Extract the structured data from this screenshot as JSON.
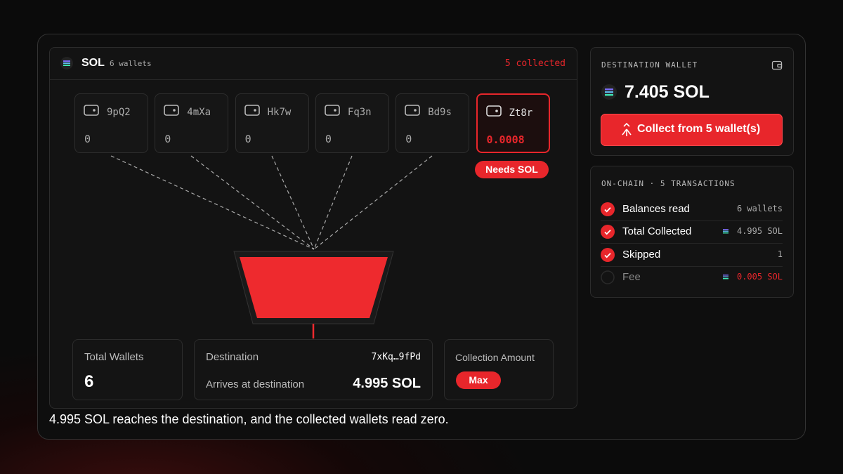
{
  "panel": {
    "token": "SOL",
    "wallet_count": "6 wallets",
    "collected": "5 collected"
  },
  "wallets": [
    {
      "id": "9pQ2",
      "balance": 0
    },
    {
      "id": "4mXa",
      "balance": 0
    },
    {
      "id": "Hk7w",
      "balance": 0
    },
    {
      "id": "Fq3n",
      "balance": 0
    },
    {
      "id": "Bd9s",
      "balance": 0
    },
    {
      "id": "Zt8r",
      "balance": 0.0008,
      "badge": "Needs SOL"
    }
  ],
  "stats": {
    "total_wallets_label": "Total Wallets",
    "total_wallets": 6,
    "destination_label": "Destination",
    "destination": "7xKq…9fPd",
    "arrives_label": "Arrives at destination",
    "arrives": "4.995 SOL",
    "amount_label": "Collection Amount",
    "amount": "Max"
  },
  "caption": "4.995 SOL reaches the destination, and the collected wallets read zero.",
  "destination_wallet": {
    "label": "DESTINATION WALLET",
    "balance": "7.405 SOL",
    "button": "Collect from 5 wallet(s)"
  },
  "onchain": {
    "title": "ON-CHAIN · 5 TRANSACTIONS",
    "rows": [
      {
        "label": "Balances read",
        "value": "6 wallets"
      },
      {
        "label": "Total Collected",
        "value": "4.995 SOL"
      },
      {
        "label": "Skipped",
        "value": "1"
      },
      {
        "label": "Fee",
        "value": "0.005 SOL"
      }
    ]
  }
}
